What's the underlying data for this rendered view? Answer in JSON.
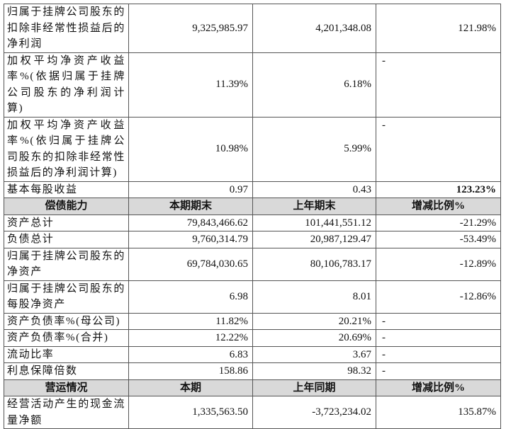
{
  "sections": [
    {
      "rows": [
        [
          "归属于挂牌公司股东的扣除非经常性损益后的净利润",
          "9,325,985.97",
          "4,201,348.08",
          "121.98%"
        ],
        [
          "加权平均净资产收益率%(依据归属于挂牌公司股东的净利润计算)",
          "11.39%",
          "6.18%",
          "-"
        ],
        [
          "加权平均净资产收益率%(依归属于挂牌公司股东的扣除非经常性损益后的净利润计算)",
          "10.98%",
          "5.99%",
          "-"
        ],
        [
          "基本每股收益",
          "0.97",
          "0.43",
          "123.23%"
        ]
      ]
    },
    {
      "header": [
        "偿债能力",
        "本期期末",
        "上年期末",
        "增减比例%"
      ],
      "rows": [
        [
          "资产总计",
          "79,843,466.62",
          "101,441,551.12",
          "-21.29%"
        ],
        [
          "负债总计",
          "9,760,314.79",
          "20,987,129.47",
          "-53.49%"
        ],
        [
          "归属于挂牌公司股东的净资产",
          "69,784,030.65",
          "80,106,783.17",
          "-12.89%"
        ],
        [
          "归属于挂牌公司股东的每股净资产",
          "6.98",
          "8.01",
          "-12.86%"
        ],
        [
          "资产负债率%(母公司)",
          "11.82%",
          "20.21%",
          "-"
        ],
        [
          "资产负债率%(合并)",
          "12.22%",
          "20.69%",
          "-"
        ],
        [
          "流动比率",
          "6.83",
          "3.67",
          "-"
        ],
        [
          "利息保障倍数",
          "158.86",
          "98.32",
          "-"
        ]
      ]
    },
    {
      "header": [
        "营运情况",
        "本期",
        "上年同期",
        "增减比例%"
      ],
      "rows": [
        [
          "经营活动产生的现金流量净额",
          "1,335,563.50",
          "-3,723,234.02",
          "135.87%"
        ]
      ]
    }
  ]
}
